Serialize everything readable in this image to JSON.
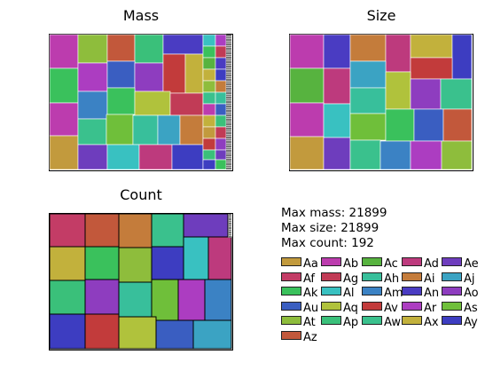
{
  "chart_data": [
    {
      "type": "treemap",
      "title": "Mass",
      "metric": "mass",
      "grid": false
    },
    {
      "type": "treemap",
      "title": "Size",
      "metric": "size",
      "grid": false
    },
    {
      "type": "treemap",
      "title": "Count",
      "metric": "count",
      "grid": false
    }
  ],
  "summary": {
    "max_mass": "Max mass: 21899",
    "max_size": "Max size: 21899",
    "max_count": "Max count: 192"
  },
  "legend": {
    "placement": "bottom-right",
    "entries": [
      {
        "label": "Aa",
        "color": "#c29a3d"
      },
      {
        "label": "Ab",
        "color": "#bc3cae"
      },
      {
        "label": "Ac",
        "color": "#57b33f"
      },
      {
        "label": "Ad",
        "color": "#bd3a7d"
      },
      {
        "label": "Ae",
        "color": "#6e3dbd"
      },
      {
        "label": "Af",
        "color": "#c33c66"
      },
      {
        "label": "Ag",
        "color": "#c13b56"
      },
      {
        "label": "Ah",
        "color": "#38bf9b"
      },
      {
        "label": "Ai",
        "color": "#c47c3b"
      },
      {
        "label": "Aj",
        "color": "#3ba3c3"
      },
      {
        "label": "Ak",
        "color": "#3ac15c"
      },
      {
        "label": "Al",
        "color": "#39c1c1"
      },
      {
        "label": "Am",
        "color": "#3b82c4"
      },
      {
        "label": "An",
        "color": "#4a3cc2"
      },
      {
        "label": "Ao",
        "color": "#8e3dbf"
      },
      {
        "label": "Au",
        "color": "#3a5ec1"
      },
      {
        "label": "Aq",
        "color": "#b0c23c"
      },
      {
        "label": "Av",
        "color": "#c23b3b"
      },
      {
        "label": "Ar",
        "color": "#ac3dc1"
      },
      {
        "label": "As",
        "color": "#6fbf3a"
      },
      {
        "label": "At",
        "color": "#8ebd3c"
      },
      {
        "label": "Ap",
        "color": "#3ac07a"
      },
      {
        "label": "Aw",
        "color": "#3ac18d"
      },
      {
        "label": "Ax",
        "color": "#c2b13c"
      },
      {
        "label": "Ay",
        "color": "#3d3dc1"
      },
      {
        "label": "Az",
        "color": "#c2583b"
      }
    ]
  }
}
